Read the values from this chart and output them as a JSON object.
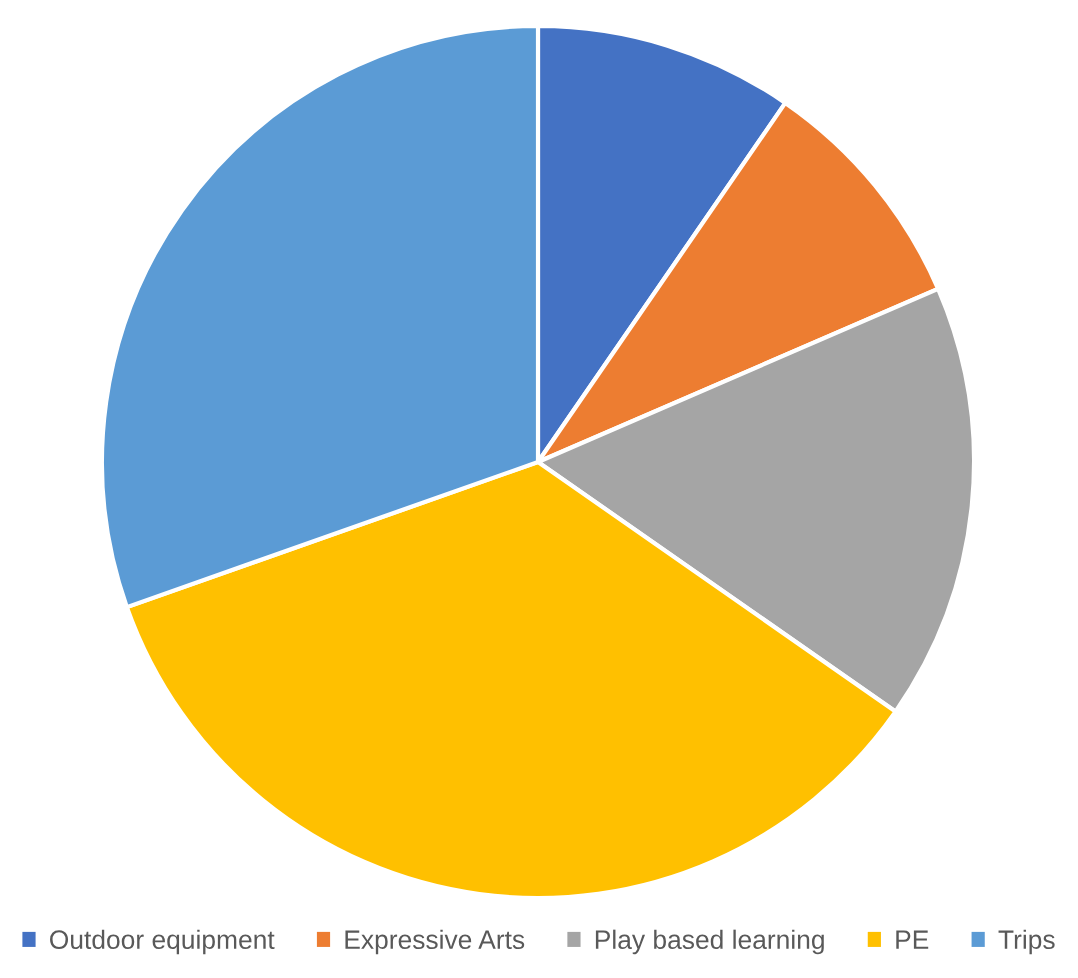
{
  "chart_data": {
    "type": "pie",
    "categories": [
      "Outdoor equipment",
      "Expressive Arts",
      "Play based learning",
      "PE",
      "Trips"
    ],
    "values": [
      9.6,
      8.9,
      16.2,
      34.9,
      30.4
    ],
    "colors": [
      "#4472c4",
      "#ed7d31",
      "#a5a5a5",
      "#ffc000",
      "#5b9bd5"
    ],
    "legend": "bottom"
  }
}
